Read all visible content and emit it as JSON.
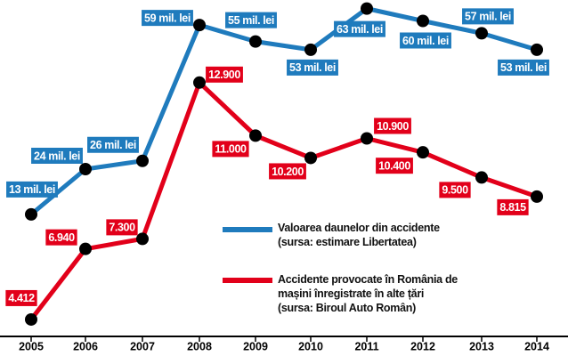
{
  "chart_data": {
    "type": "line",
    "categories": [
      "2005",
      "2006",
      "2007",
      "2008",
      "2009",
      "2010",
      "2011",
      "2012",
      "2013",
      "2014"
    ],
    "ylim": [
      -16,
      64
    ],
    "y2lim": [
      3900,
      15700
    ],
    "series": [
      {
        "name": "Valoarea daunelor din accidente",
        "source": "(sursa: estimare Libertatea)",
        "color": "#1f7bbd",
        "values": [
          13,
          24,
          26,
          59,
          55,
          53,
          63,
          60,
          57,
          53
        ],
        "value_labels": [
          "13 mil. lei",
          "24 mil. lei",
          "26 mil. lei",
          "59 mil. lei",
          "55 mil. lei",
          "53 mil. lei",
          "63 mil. lei",
          "60 mil. lei",
          "57 mil. lei",
          "53 mil. lei"
        ]
      },
      {
        "name": "Accidente provocate în România de mașini înregistrate în alte țări",
        "source": "(sursa: Biroul Auto Român)",
        "color": "#e2001a",
        "axis": "y2",
        "values": [
          4412,
          6940,
          7300,
          12900,
          11000,
          10200,
          10900,
          10400,
          9500,
          8815
        ],
        "value_labels": [
          "4.412",
          "6.940",
          "7.300",
          "12.900",
          "11.000",
          "10.200",
          "10.900",
          "10.400",
          "9.500",
          "8.815"
        ]
      }
    ]
  }
}
